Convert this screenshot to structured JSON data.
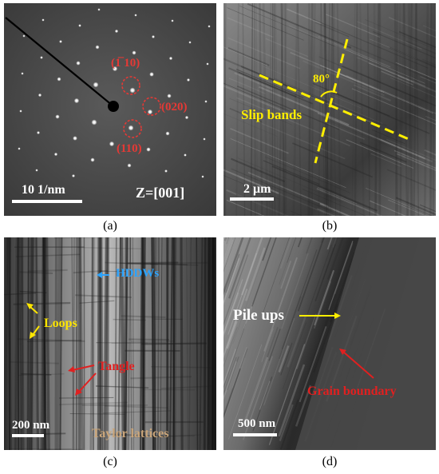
{
  "colors": {
    "spot_circle": "#e53935",
    "panel_b_label": "#ffee00",
    "hddw": "#2aa3ff",
    "loops": "#ffe600",
    "tangle": "#e02020",
    "taylor": "#c9a57a",
    "grain_boundary": "#e02020",
    "pile_ups": "#ffffff"
  },
  "panel_a": {
    "spot_1": "(1̅ 10)",
    "spot_2": "(020)",
    "spot_3": "(110)",
    "scale": "10 1/nm",
    "zone_axis": "Z=[001]",
    "caption": "(a)"
  },
  "panel_b": {
    "slip_bands": "Slip bands",
    "angle": "80°",
    "scale": "2 μm",
    "caption": "(b)"
  },
  "panel_c": {
    "hddws": "HDDWs",
    "loops": "Loops",
    "tangle": "Tangle",
    "scale": "200 nm",
    "taylor": "Taylor lattices",
    "caption": "(c)"
  },
  "panel_d": {
    "pile_ups": "Pile ups",
    "grain_boundary": "Grain boundary",
    "scale": "500 nm",
    "caption": "(d)"
  }
}
